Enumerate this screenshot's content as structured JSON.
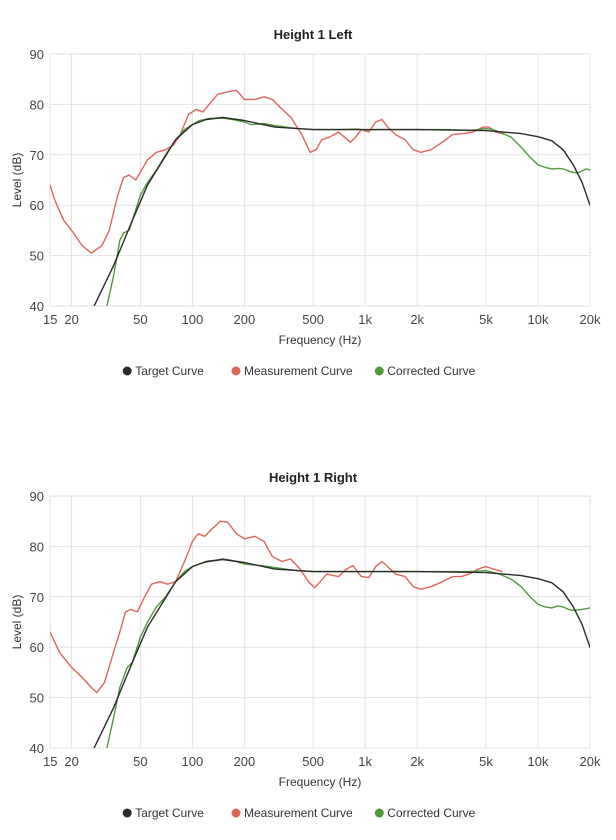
{
  "chart_data": [
    {
      "type": "line",
      "title": "Height 1 Left",
      "xlabel": "Frequency (Hz)",
      "ylabel": "Level (dB)",
      "x_scale": "log",
      "xlim": [
        15,
        20000
      ],
      "ylim": [
        40,
        90
      ],
      "grid": true,
      "legend_position": "bottom-center",
      "x_ticks": [
        {
          "value": 15,
          "label": "15"
        },
        {
          "value": 20,
          "label": "20"
        },
        {
          "value": 50,
          "label": "50"
        },
        {
          "value": 100,
          "label": "100"
        },
        {
          "value": 200,
          "label": "200"
        },
        {
          "value": 500,
          "label": "500"
        },
        {
          "value": 1000,
          "label": "1k"
        },
        {
          "value": 2000,
          "label": "2k"
        },
        {
          "value": 5000,
          "label": "5k"
        },
        {
          "value": 10000,
          "label": "10k"
        },
        {
          "value": 20000,
          "label": "20k"
        }
      ],
      "y_ticks": [
        40,
        50,
        60,
        70,
        80,
        90
      ],
      "series": [
        {
          "name": "Target Curve",
          "color": "#2b2b2b",
          "points": [
            [
              27,
              40
            ],
            [
              35,
              48
            ],
            [
              45,
              57
            ],
            [
              55,
              64
            ],
            [
              65,
              68
            ],
            [
              80,
              73
            ],
            [
              100,
              76
            ],
            [
              120,
              77
            ],
            [
              150,
              77.4
            ],
            [
              200,
              76.8
            ],
            [
              300,
              75.5
            ],
            [
              500,
              75
            ],
            [
              1000,
              75
            ],
            [
              2000,
              75
            ],
            [
              5000,
              74.8
            ],
            [
              8000,
              74.2
            ],
            [
              10000,
              73.6
            ],
            [
              12000,
              72.8
            ],
            [
              14000,
              71
            ],
            [
              16000,
              68
            ],
            [
              18000,
              64.5
            ],
            [
              20000,
              60
            ]
          ]
        },
        {
          "name": "Measurement Curve",
          "color": "#e0645a",
          "points": [
            [
              15,
              64
            ],
            [
              16,
              61
            ],
            [
              18,
              57
            ],
            [
              20,
              55
            ],
            [
              23,
              52
            ],
            [
              26,
              50.5
            ],
            [
              30,
              52
            ],
            [
              33,
              55
            ],
            [
              37,
              62
            ],
            [
              40,
              65.5
            ],
            [
              43,
              66
            ],
            [
              47,
              65
            ],
            [
              55,
              69
            ],
            [
              62,
              70.5
            ],
            [
              70,
              71
            ],
            [
              78,
              72
            ],
            [
              85,
              74
            ],
            [
              95,
              78
            ],
            [
              105,
              79
            ],
            [
              115,
              78.5
            ],
            [
              125,
              80
            ],
            [
              140,
              82
            ],
            [
              160,
              82.5
            ],
            [
              180,
              82.8
            ],
            [
              200,
              81
            ],
            [
              230,
              81
            ],
            [
              260,
              81.5
            ],
            [
              290,
              81
            ],
            [
              320,
              79.5
            ],
            [
              370,
              77.5
            ],
            [
              430,
              74
            ],
            [
              480,
              70.5
            ],
            [
              520,
              71
            ],
            [
              560,
              73
            ],
            [
              620,
              73.5
            ],
            [
              700,
              74.5
            ],
            [
              760,
              73.5
            ],
            [
              820,
              72.5
            ],
            [
              880,
              73.5
            ],
            [
              950,
              75
            ],
            [
              1050,
              74.5
            ],
            [
              1150,
              76.5
            ],
            [
              1250,
              77
            ],
            [
              1350,
              75.5
            ],
            [
              1500,
              74
            ],
            [
              1700,
              73
            ],
            [
              1900,
              71
            ],
            [
              2100,
              70.5
            ],
            [
              2400,
              71
            ],
            [
              2800,
              72.5
            ],
            [
              3200,
              74
            ],
            [
              3700,
              74.2
            ],
            [
              4200,
              74.5
            ],
            [
              4800,
              75.5
            ],
            [
              5200,
              75.5
            ],
            [
              5700,
              74.5
            ],
            [
              6500,
              74
            ]
          ]
        },
        {
          "name": "Corrected Curve",
          "color": "#4f9a3a",
          "points": [
            [
              32,
              40
            ],
            [
              35,
              46
            ],
            [
              38,
              53
            ],
            [
              40,
              54.5
            ],
            [
              43,
              55
            ],
            [
              45,
              57
            ],
            [
              50,
              62
            ],
            [
              55,
              64.5
            ],
            [
              62,
              67
            ],
            [
              70,
              70
            ],
            [
              80,
              73
            ],
            [
              90,
              75
            ],
            [
              100,
              76
            ],
            [
              110,
              76.8
            ],
            [
              125,
              77.2
            ],
            [
              150,
              77.3
            ],
            [
              170,
              77
            ],
            [
              200,
              76.5
            ],
            [
              220,
              76
            ],
            [
              260,
              76.2
            ],
            [
              300,
              75.8
            ],
            [
              400,
              75.2
            ],
            [
              500,
              75
            ],
            [
              700,
              75
            ],
            [
              900,
              75.1
            ],
            [
              1000,
              74.9
            ],
            [
              1200,
              75
            ],
            [
              1500,
              75
            ],
            [
              2000,
              75
            ],
            [
              2500,
              75
            ],
            [
              3000,
              75
            ],
            [
              3500,
              74.9
            ],
            [
              4000,
              74.8
            ],
            [
              4500,
              75
            ],
            [
              5000,
              75.2
            ],
            [
              5500,
              75
            ],
            [
              6000,
              74.5
            ],
            [
              7000,
              73.5
            ],
            [
              8000,
              71.5
            ],
            [
              9000,
              69.5
            ],
            [
              10000,
              68
            ],
            [
              11000,
              67.5
            ],
            [
              12000,
              67.2
            ],
            [
              13000,
              67.3
            ],
            [
              14000,
              67.2
            ],
            [
              15000,
              66.8
            ],
            [
              16000,
              66.5
            ],
            [
              17000,
              66.4
            ],
            [
              18000,
              66.8
            ],
            [
              19000,
              67.2
            ],
            [
              20000,
              67
            ]
          ]
        }
      ]
    },
    {
      "type": "line",
      "title": "Height 1 Right",
      "xlabel": "Frequency (Hz)",
      "ylabel": "Level (dB)",
      "x_scale": "log",
      "xlim": [
        15,
        20000
      ],
      "ylim": [
        40,
        90
      ],
      "grid": true,
      "legend_position": "bottom-center",
      "x_ticks": [
        {
          "value": 15,
          "label": "15"
        },
        {
          "value": 20,
          "label": "20"
        },
        {
          "value": 50,
          "label": "50"
        },
        {
          "value": 100,
          "label": "100"
        },
        {
          "value": 200,
          "label": "200"
        },
        {
          "value": 500,
          "label": "500"
        },
        {
          "value": 1000,
          "label": "1k"
        },
        {
          "value": 2000,
          "label": "2k"
        },
        {
          "value": 5000,
          "label": "5k"
        },
        {
          "value": 10000,
          "label": "10k"
        },
        {
          "value": 20000,
          "label": "20k"
        }
      ],
      "y_ticks": [
        40,
        50,
        60,
        70,
        80,
        90
      ],
      "series": [
        {
          "name": "Target Curve",
          "color": "#2b2b2b",
          "points": [
            [
              27,
              40
            ],
            [
              35,
              48
            ],
            [
              45,
              57
            ],
            [
              55,
              64
            ],
            [
              65,
              68
            ],
            [
              80,
              73
            ],
            [
              100,
              76
            ],
            [
              120,
              77
            ],
            [
              150,
              77.4
            ],
            [
              200,
              76.8
            ],
            [
              300,
              75.5
            ],
            [
              500,
              75
            ],
            [
              1000,
              75
            ],
            [
              2000,
              75
            ],
            [
              5000,
              74.8
            ],
            [
              8000,
              74.2
            ],
            [
              10000,
              73.6
            ],
            [
              12000,
              72.8
            ],
            [
              14000,
              71
            ],
            [
              16000,
              68
            ],
            [
              18000,
              64.5
            ],
            [
              20000,
              60
            ]
          ]
        },
        {
          "name": "Measurement Curve",
          "color": "#e0645a",
          "points": [
            [
              15,
              63
            ],
            [
              17,
              59
            ],
            [
              20,
              56
            ],
            [
              23,
              54
            ],
            [
              26,
              52
            ],
            [
              28,
              51
            ],
            [
              31,
              53
            ],
            [
              35,
              59
            ],
            [
              38,
              63
            ],
            [
              41,
              67
            ],
            [
              44,
              67.5
            ],
            [
              48,
              67
            ],
            [
              53,
              70
            ],
            [
              58,
              72.5
            ],
            [
              65,
              73
            ],
            [
              72,
              72.5
            ],
            [
              80,
              73
            ],
            [
              90,
              77
            ],
            [
              100,
              81
            ],
            [
              108,
              82.5
            ],
            [
              118,
              82
            ],
            [
              130,
              83.5
            ],
            [
              145,
              85
            ],
            [
              160,
              84.8
            ],
            [
              180,
              82.5
            ],
            [
              200,
              81.5
            ],
            [
              230,
              82
            ],
            [
              260,
              81
            ],
            [
              290,
              78
            ],
            [
              330,
              77
            ],
            [
              370,
              77.5
            ],
            [
              420,
              75.5
            ],
            [
              470,
              73
            ],
            [
              510,
              71.8
            ],
            [
              550,
              73
            ],
            [
              600,
              74.5
            ],
            [
              700,
              74
            ],
            [
              780,
              75.5
            ],
            [
              850,
              76.2
            ],
            [
              900,
              75
            ],
            [
              950,
              74
            ],
            [
              1050,
              73.8
            ],
            [
              1150,
              76
            ],
            [
              1250,
              77
            ],
            [
              1350,
              76
            ],
            [
              1500,
              74.5
            ],
            [
              1700,
              74
            ],
            [
              1900,
              72
            ],
            [
              2100,
              71.5
            ],
            [
              2400,
              72
            ],
            [
              2800,
              73
            ],
            [
              3200,
              74
            ],
            [
              3600,
              74
            ],
            [
              4000,
              74.5
            ],
            [
              4500,
              75.5
            ],
            [
              5000,
              76
            ],
            [
              5500,
              75.5
            ],
            [
              6200,
              75
            ]
          ]
        },
        {
          "name": "Corrected Curve",
          "color": "#4f9a3a",
          "points": [
            [
              32,
              40
            ],
            [
              35,
              46
            ],
            [
              38,
              52
            ],
            [
              42,
              56
            ],
            [
              45,
              57
            ],
            [
              50,
              62
            ],
            [
              55,
              65
            ],
            [
              62,
              68
            ],
            [
              70,
              70
            ],
            [
              80,
              73
            ],
            [
              90,
              75
            ],
            [
              100,
              76
            ],
            [
              110,
              76.5
            ],
            [
              125,
              77
            ],
            [
              150,
              77.5
            ],
            [
              170,
              77.2
            ],
            [
              200,
              76.5
            ],
            [
              250,
              76.2
            ],
            [
              300,
              75.8
            ],
            [
              400,
              75.2
            ],
            [
              500,
              75
            ],
            [
              700,
              75
            ],
            [
              1000,
              75
            ],
            [
              1500,
              75
            ],
            [
              2000,
              75
            ],
            [
              3000,
              75
            ],
            [
              4000,
              75
            ],
            [
              5000,
              75.2
            ],
            [
              6000,
              74.5
            ],
            [
              7000,
              73.5
            ],
            [
              8000,
              72
            ],
            [
              9000,
              70
            ],
            [
              10000,
              68.5
            ],
            [
              11000,
              68
            ],
            [
              12000,
              67.8
            ],
            [
              13000,
              68.2
            ],
            [
              14000,
              68
            ],
            [
              15000,
              67.5
            ],
            [
              16000,
              67.3
            ],
            [
              18000,
              67.5
            ],
            [
              20000,
              67.8
            ]
          ]
        }
      ]
    }
  ]
}
